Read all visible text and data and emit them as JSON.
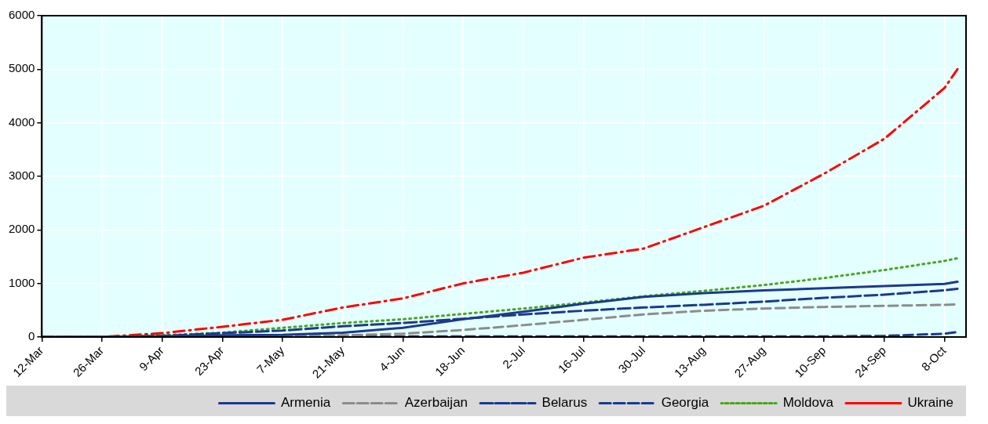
{
  "chart_data": {
    "type": "line",
    "legend": "bottom",
    "grid": true,
    "marker": "none",
    "xlim": [
      "--03-12",
      "--10-13"
    ],
    "xticks": [
      {
        "value": "--03-12",
        "label": "12-Mar"
      },
      {
        "value": "--03-26",
        "label": "26-Mar"
      },
      {
        "value": "--04-09",
        "label": "9-Apr"
      },
      {
        "value": "--04-23",
        "label": "23-Apr"
      },
      {
        "value": "--05-07",
        "label": "7-May"
      },
      {
        "value": "--05-21",
        "label": "21-May"
      },
      {
        "value": "--06-04",
        "label": "4-Jun"
      },
      {
        "value": "--06-18",
        "label": "18-Jun"
      },
      {
        "value": "--07-02",
        "label": "2-Jul"
      },
      {
        "value": "--07-16",
        "label": "16-Jul"
      },
      {
        "value": "--07-30",
        "label": "30-Jul"
      },
      {
        "value": "--08-13",
        "label": "13-Aug"
      },
      {
        "value": "--08-27",
        "label": "27-Aug"
      },
      {
        "value": "--09-10",
        "label": "10-Sep"
      },
      {
        "value": "--09-24",
        "label": "24-Sep"
      },
      {
        "value": "--10-08",
        "label": "8-Oct"
      }
    ],
    "ylim": [
      0,
      6000
    ],
    "yticks": [
      0,
      1000,
      2000,
      3000,
      4000,
      5000,
      6000
    ],
    "x": [
      "--03-12",
      "--03-26",
      "--04-09",
      "--04-23",
      "--05-07",
      "--05-21",
      "--06-04",
      "--06-18",
      "--07-02",
      "--07-16",
      "--07-30",
      "--08-13",
      "--08-27",
      "--09-10",
      "--09-24",
      "--10-08",
      "--10-11"
    ],
    "series": [
      {
        "name": "Armenia",
        "color": "#1b3a8c",
        "line_style": "solid",
        "values": [
          0,
          0,
          10,
          30,
          40,
          80,
          170,
          330,
          470,
          620,
          750,
          820,
          870,
          910,
          950,
          990,
          1030
        ]
      },
      {
        "name": "Azerbaijan",
        "color": "#8c8c8c",
        "line_style": "dashed",
        "values": [
          0,
          0,
          0,
          10,
          20,
          30,
          60,
          130,
          220,
          320,
          420,
          490,
          530,
          560,
          580,
          600,
          610
        ]
      },
      {
        "name": "Belarus",
        "color": "#1b3a8c",
        "line_style": "longdash",
        "values": [
          0,
          0,
          20,
          70,
          120,
          200,
          260,
          340,
          420,
          490,
          550,
          600,
          660,
          730,
          790,
          870,
          900
        ]
      },
      {
        "name": "Georgia",
        "color": "#1b3a8c",
        "line_style": "dashed",
        "values": [
          0,
          0,
          10,
          10,
          10,
          10,
          10,
          10,
          10,
          10,
          10,
          10,
          10,
          10,
          20,
          60,
          90
        ]
      },
      {
        "name": "Moldova",
        "color": "#4aa51c",
        "line_style": "dotted",
        "values": [
          0,
          0,
          30,
          80,
          170,
          260,
          330,
          430,
          530,
          640,
          760,
          860,
          970,
          1100,
          1250,
          1420,
          1470
        ]
      },
      {
        "name": "Ukraine",
        "color": "#ff0000",
        "line_style": "dashdot",
        "values": [
          0,
          0,
          70,
          190,
          320,
          550,
          720,
          1000,
          1200,
          1480,
          1650,
          2050,
          2450,
          3050,
          3700,
          4650,
          5000
        ]
      }
    ]
  }
}
